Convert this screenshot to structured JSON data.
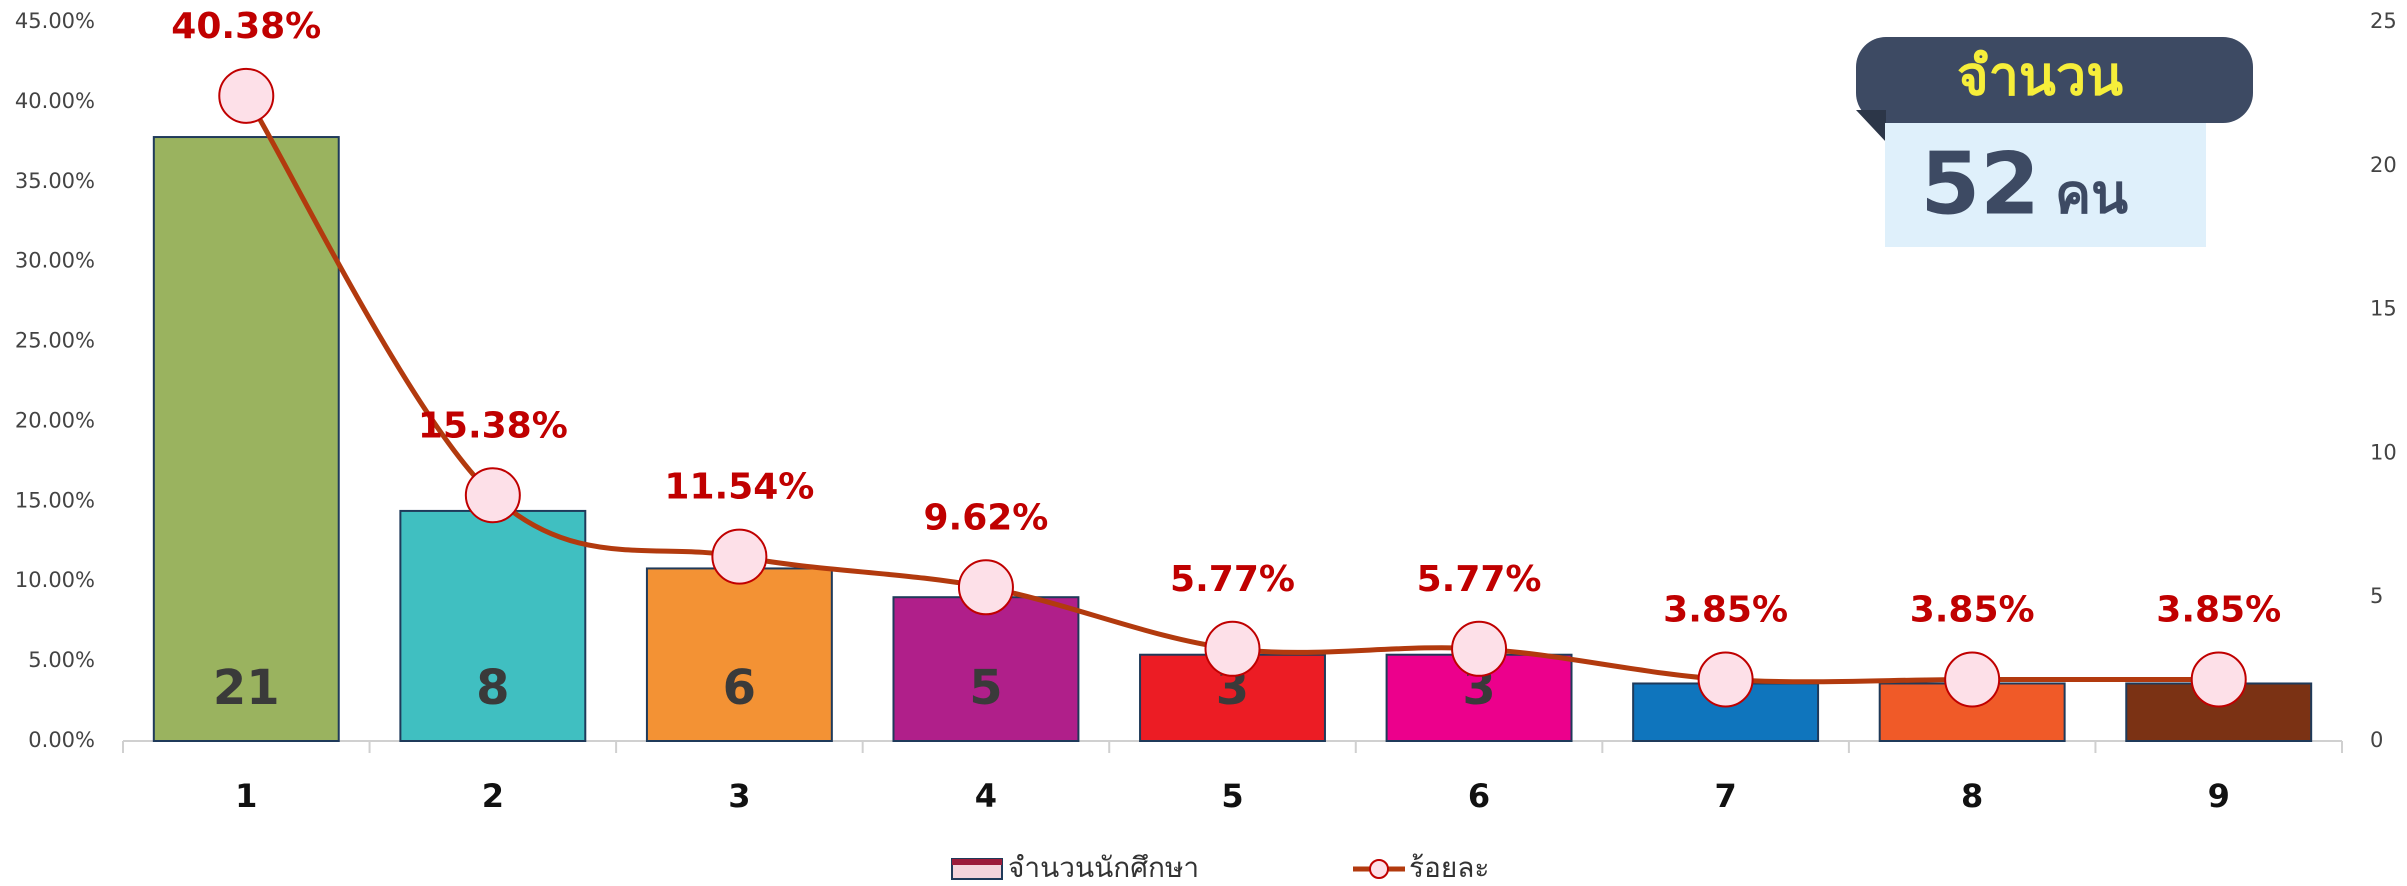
{
  "chart_data": {
    "type": "combo",
    "categories": [
      "1",
      "2",
      "3",
      "4",
      "5",
      "6",
      "7",
      "8",
      "9"
    ],
    "series": [
      {
        "name": "จำนวนนักศึกษา",
        "type": "bar",
        "axis": "y2",
        "colors": [
          "#9ab35f",
          "#40bfc1",
          "#f39234",
          "#b01f8a",
          "#ec1c24",
          "#ec008c",
          "#0f75bd",
          "#f05a28",
          "#7b3214"
        ],
        "values": [
          21,
          8,
          6,
          5,
          3,
          3,
          2,
          2,
          2
        ]
      },
      {
        "name": "ร้อยละ",
        "type": "line",
        "axis": "y",
        "color": "#b23a0e",
        "values": [
          40.38,
          15.38,
          11.54,
          9.62,
          5.77,
          5.77,
          3.85,
          3.85,
          3.85
        ],
        "value_labels": [
          "40.38%",
          "15.38%",
          "11.54%",
          "9.62%",
          "5.77%",
          "5.77%",
          "3.85%",
          "3.85%",
          "3.85%"
        ]
      }
    ],
    "ylim": [
      0,
      45
    ],
    "yticks": [
      {
        "value": 0,
        "label": "0.00%"
      },
      {
        "value": 5,
        "label": "5.00%"
      },
      {
        "value": 10,
        "label": "10.00%"
      },
      {
        "value": 15,
        "label": "15.00%"
      },
      {
        "value": 20,
        "label": "20.00%"
      },
      {
        "value": 25,
        "label": "25.00%"
      },
      {
        "value": 30,
        "label": "30.00%"
      },
      {
        "value": 35,
        "label": "35.00%"
      },
      {
        "value": 40,
        "label": "40.00%"
      },
      {
        "value": 45,
        "label": "45.00%"
      }
    ],
    "y2lim": [
      0,
      25
    ],
    "y2ticks": [
      0,
      5,
      10,
      15,
      20,
      25
    ],
    "legend": "bottom",
    "callout": {
      "title": "จำนวน",
      "number": "52",
      "unit": "คน"
    }
  }
}
